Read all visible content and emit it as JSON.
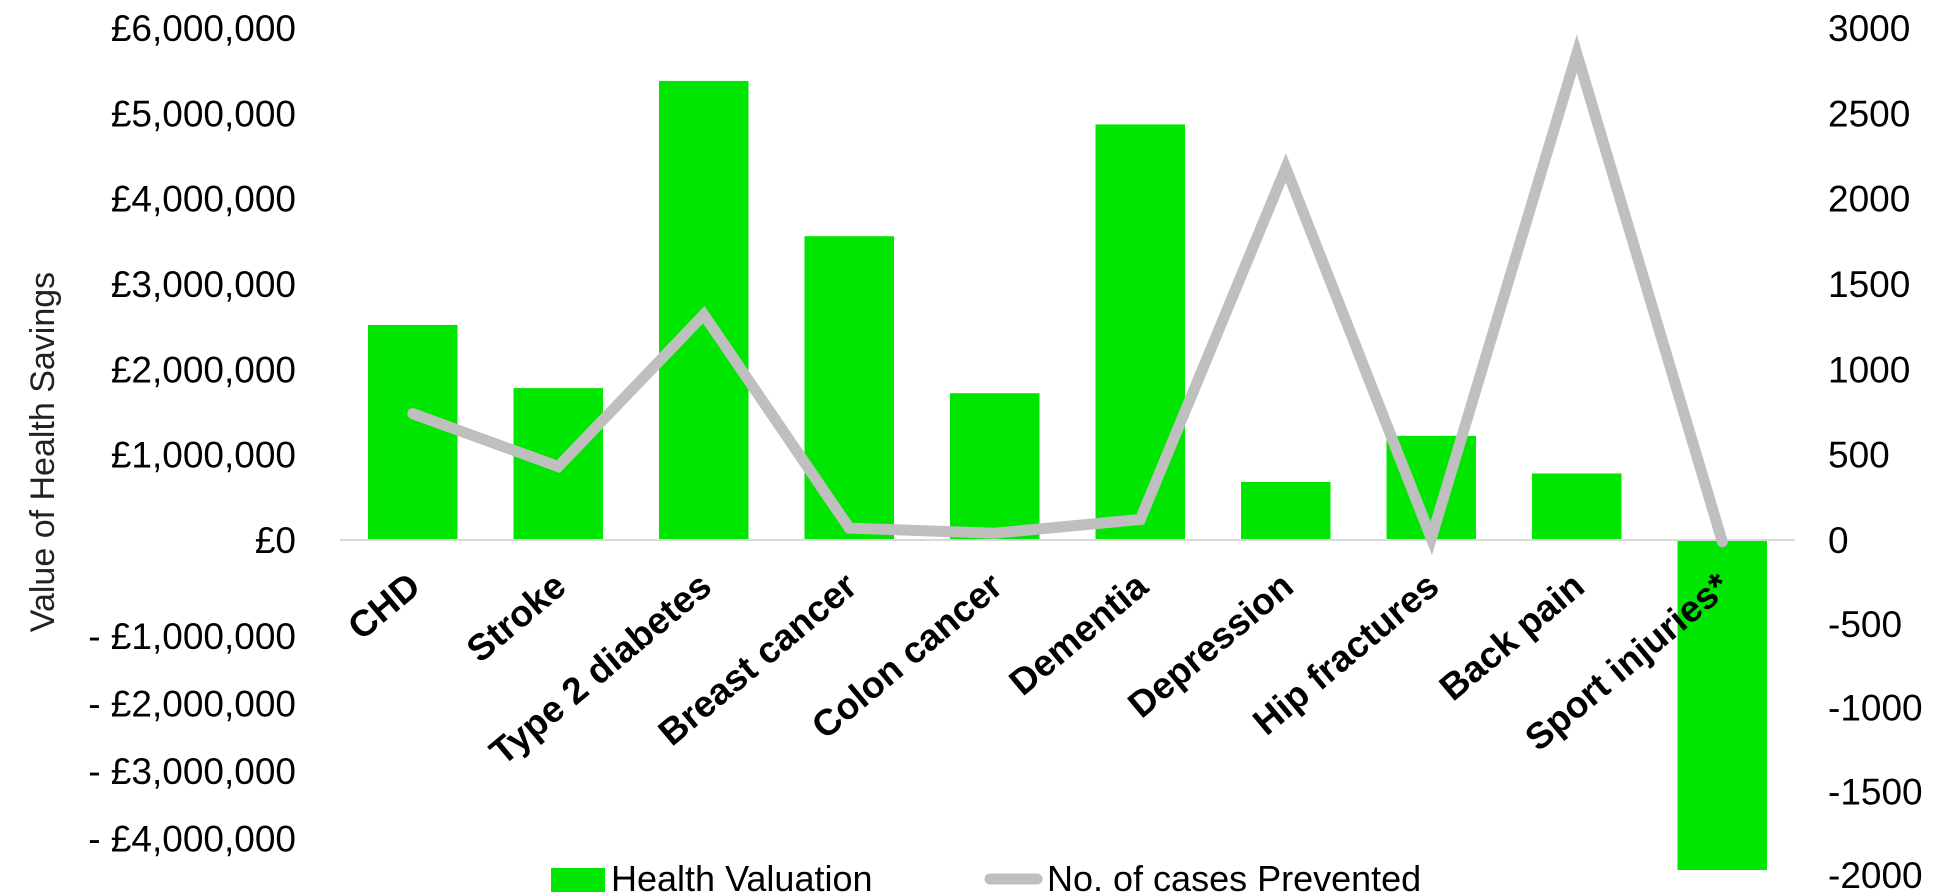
{
  "chart_data": {
    "type": "bar",
    "categories": [
      "CHD",
      "Stroke",
      "Type 2 diabetes",
      "Breast cancer",
      "Colon cancer",
      "Dementia",
      "Depression",
      "Hip fractures",
      "Back pain",
      "Sport injuries*"
    ],
    "series": [
      {
        "name": "Health Valuation",
        "type": "bar",
        "axis": "left",
        "color": "#00e600",
        "values": [
          2520000,
          1780000,
          5380000,
          3560000,
          1720000,
          4870000,
          680000,
          1220000,
          780000,
          -3940000
        ]
      },
      {
        "name": "No. of cases Prevented",
        "type": "line",
        "axis": "right",
        "color": "#bfbfbf",
        "values": [
          740,
          430,
          1320,
          70,
          40,
          120,
          2180,
          10,
          2850,
          -10
        ]
      }
    ],
    "ylabel": "Value of Health Savings",
    "left_axis": {
      "ylim": [
        -4000000,
        6000000
      ],
      "ticks": [
        {
          "value": 6000000,
          "label": "£6,000,000"
        },
        {
          "value": 5000000,
          "label": "£5,000,000"
        },
        {
          "value": 4000000,
          "label": "£4,000,000"
        },
        {
          "value": 3000000,
          "label": "£3,000,000"
        },
        {
          "value": 2000000,
          "label": "£2,000,000"
        },
        {
          "value": 1000000,
          "label": "£1,000,000"
        },
        {
          "value": 0,
          "label": "£0"
        },
        {
          "value": -1000000,
          "label": "- £1,000,000"
        },
        {
          "value": -2000000,
          "label": "- £2,000,000"
        },
        {
          "value": -3000000,
          "label": "- £3,000,000"
        },
        {
          "value": -4000000,
          "label": "- £4,000,000"
        }
      ]
    },
    "right_axis": {
      "ylim": [
        -2000,
        3000
      ],
      "ticks": [
        {
          "value": 3000,
          "label": "3000"
        },
        {
          "value": 2500,
          "label": "2500"
        },
        {
          "value": 2000,
          "label": "2000"
        },
        {
          "value": 1500,
          "label": "1500"
        },
        {
          "value": 1000,
          "label": "1000"
        },
        {
          "value": 500,
          "label": "500"
        },
        {
          "value": 0,
          "label": "0"
        },
        {
          "value": -500,
          "label": "-500"
        },
        {
          "value": -1000,
          "label": "-1000"
        },
        {
          "value": -1500,
          "label": "-1500"
        },
        {
          "value": -2000,
          "label": "-2000"
        }
      ]
    },
    "legend": {
      "position": "bottom",
      "items": [
        "Health Valuation",
        "No. of cases Prevented"
      ]
    },
    "grid": false
  }
}
